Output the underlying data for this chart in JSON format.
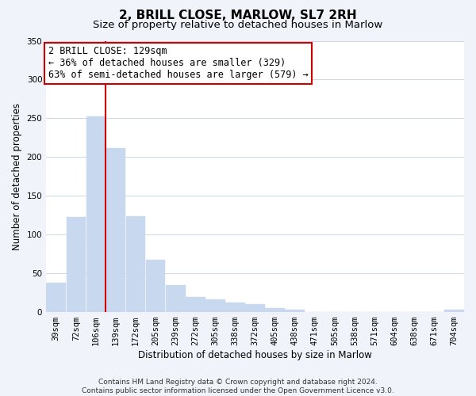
{
  "title": "2, BRILL CLOSE, MARLOW, SL7 2RH",
  "subtitle": "Size of property relative to detached houses in Marlow",
  "xlabel": "Distribution of detached houses by size in Marlow",
  "ylabel": "Number of detached properties",
  "bar_labels": [
    "39sqm",
    "72sqm",
    "106sqm",
    "139sqm",
    "172sqm",
    "205sqm",
    "239sqm",
    "272sqm",
    "305sqm",
    "338sqm",
    "372sqm",
    "405sqm",
    "438sqm",
    "471sqm",
    "505sqm",
    "538sqm",
    "571sqm",
    "604sqm",
    "638sqm",
    "671sqm",
    "704sqm"
  ],
  "bar_values": [
    38,
    123,
    252,
    212,
    124,
    68,
    35,
    20,
    16,
    12,
    10,
    5,
    3,
    0,
    0,
    0,
    0,
    0,
    0,
    0,
    3
  ],
  "bar_color": "#c8d8ee",
  "bar_edge_color": "#c8d8ee",
  "vline_color": "#cc0000",
  "vline_x_index": 2.5,
  "annotation_text": "2 BRILL CLOSE: 129sqm\n← 36% of detached houses are smaller (329)\n63% of semi-detached houses are larger (579) →",
  "annotation_box_color": "#ffffff",
  "annotation_box_edge": "#cc0000",
  "ylim": [
    0,
    350
  ],
  "yticks": [
    0,
    50,
    100,
    150,
    200,
    250,
    300,
    350
  ],
  "footnote": "Contains HM Land Registry data © Crown copyright and database right 2024.\nContains public sector information licensed under the Open Government Licence v3.0.",
  "bg_color": "#f0f4fa",
  "plot_bg_color": "#ffffff",
  "grid_color": "#ccd8e8",
  "title_fontsize": 11,
  "subtitle_fontsize": 9.5,
  "axis_label_fontsize": 8.5,
  "tick_fontsize": 7.5,
  "annotation_fontsize": 8.5,
  "footnote_fontsize": 6.5
}
